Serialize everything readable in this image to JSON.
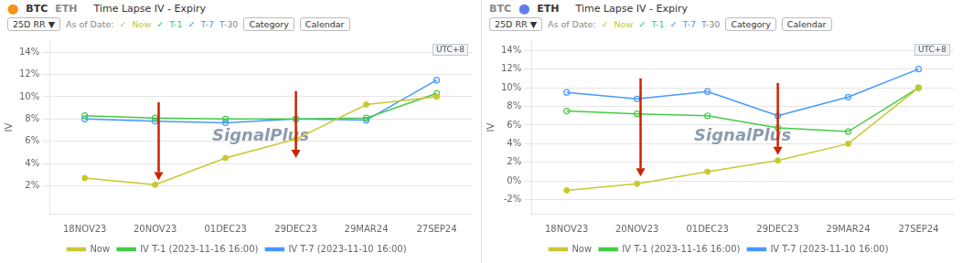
{
  "chart_data": [
    {
      "type": "line",
      "title": "Time Lapse IV - Expiry",
      "ylabel": "IV",
      "categories": [
        "18NOV23",
        "20NOV23",
        "01DEC23",
        "29DEC23",
        "29MAR24",
        "27SEP24"
      ],
      "series": [
        {
          "name": "Now",
          "color": "#c8c830",
          "marker": "circle",
          "values": [
            2.7,
            2.1,
            4.5,
            6.2,
            9.3,
            10.0
          ]
        },
        {
          "name": "IV T-1 (2023-11-16 16:00)",
          "color": "#44cc44",
          "marker": "hollow",
          "values": [
            8.3,
            8.1,
            8.0,
            8.0,
            8.1,
            10.3
          ]
        },
        {
          "name": "IV T-7 (2023-11-10 16:00)",
          "color": "#4499ff",
          "marker": "hollow",
          "values": [
            8.0,
            7.8,
            7.65,
            8.0,
            7.9,
            11.5
          ]
        }
      ],
      "ylim": [
        -0.5,
        15
      ],
      "yticks": [
        {
          "value": 2,
          "label": "2%"
        },
        {
          "value": 4,
          "label": "4%"
        },
        {
          "value": 6,
          "label": "6%"
        },
        {
          "value": 8,
          "label": "8%"
        },
        {
          "value": 10,
          "label": "10%"
        },
        {
          "value": 12,
          "label": "12%"
        },
        {
          "value": 14,
          "label": "14%"
        }
      ],
      "grid": true,
      "legend": "bottom",
      "annotations": [
        {
          "type": "coin",
          "text": "⬤",
          "color": "#f7931a"
        },
        {
          "type": "coin",
          "text": "BTC"
        },
        {
          "type": "coin",
          "text": "ETH",
          "color": "#888888"
        },
        {
          "type": "button",
          "text": "25D RR ▼"
        },
        {
          "type": "toolbar",
          "text": "As of Date:",
          "color": "#888888"
        },
        {
          "type": "toolbar",
          "text": "✓",
          "color": "#c8c830"
        },
        {
          "type": "toolbar",
          "text": "Now",
          "color": "#c8c830"
        },
        {
          "type": "toolbar",
          "text": "✓",
          "color": "#44cc44"
        },
        {
          "type": "toolbar",
          "text": "T-1",
          "color": "#44cc44"
        },
        {
          "type": "toolbar",
          "text": "✓",
          "color": "#4499ff"
        },
        {
          "type": "toolbar",
          "text": "T-7",
          "color": "#4499ff"
        },
        {
          "type": "toolbar",
          "text": "T-30",
          "color": "#888888"
        },
        {
          "type": "button",
          "text": "Category"
        },
        {
          "type": "button",
          "text": "Calendar"
        },
        {
          "type": "watermark",
          "text": "SignalPlus",
          "color": "#1a3a5c"
        },
        {
          "type": "badge",
          "text": "UTC+8"
        },
        {
          "type": "arrow",
          "x": 1.05,
          "y_start": 9.5,
          "y_end": 2.5,
          "color": "#cc2200"
        },
        {
          "type": "arrow",
          "x": 3.0,
          "y_start": 10.5,
          "y_end": 4.5,
          "color": "#cc2200"
        }
      ]
    },
    {
      "type": "line",
      "title": "Time Lapse IV - Expiry",
      "ylabel": "IV",
      "categories": [
        "18NOV23",
        "20NOV23",
        "01DEC23",
        "29DEC23",
        "29MAR24",
        "27SEP24"
      ],
      "series": [
        {
          "name": "Now",
          "color": "#c8c830",
          "marker": "circle",
          "values": [
            -1.0,
            -0.3,
            1.0,
            2.2,
            4.0,
            10.0
          ]
        },
        {
          "name": "IV T-1 (2023-11-16 16:00)",
          "color": "#44cc44",
          "marker": "hollow",
          "values": [
            7.5,
            7.2,
            7.0,
            5.7,
            5.3,
            10.0
          ]
        },
        {
          "name": "IV T-7 (2023-11-10 16:00)",
          "color": "#4499ff",
          "marker": "hollow",
          "values": [
            9.5,
            8.8,
            9.6,
            7.0,
            9.0,
            12.0
          ]
        }
      ],
      "ylim": [
        -3.5,
        15
      ],
      "yticks": [
        {
          "value": -2,
          "label": "-2%"
        },
        {
          "value": 0,
          "label": "0%"
        },
        {
          "value": 2,
          "label": "2%"
        },
        {
          "value": 4,
          "label": "4%"
        },
        {
          "value": 6,
          "label": "6%"
        },
        {
          "value": 8,
          "label": "8%"
        },
        {
          "value": 10,
          "label": "10%"
        },
        {
          "value": 12,
          "label": "12%"
        },
        {
          "value": 14,
          "label": "14%"
        }
      ],
      "grid": true,
      "legend": "bottom",
      "annotations": [
        {
          "type": "coin",
          "text": "BTC",
          "color": "#888888"
        },
        {
          "type": "coin",
          "text": "⬤",
          "color": "#627eea"
        },
        {
          "type": "coin",
          "text": "ETH"
        },
        {
          "type": "button",
          "text": "25D RR ▼"
        },
        {
          "type": "toolbar",
          "text": "As of Date:",
          "color": "#888888"
        },
        {
          "type": "toolbar",
          "text": "✓",
          "color": "#c8c830"
        },
        {
          "type": "toolbar",
          "text": "Now",
          "color": "#c8c830"
        },
        {
          "type": "toolbar",
          "text": "✓",
          "color": "#44cc44"
        },
        {
          "type": "toolbar",
          "text": "T-1",
          "color": "#44cc44"
        },
        {
          "type": "toolbar",
          "text": "✓",
          "color": "#4499ff"
        },
        {
          "type": "toolbar",
          "text": "T-7",
          "color": "#4499ff"
        },
        {
          "type": "toolbar",
          "text": "T-30",
          "color": "#888888"
        },
        {
          "type": "button",
          "text": "Category"
        },
        {
          "type": "button",
          "text": "Calendar"
        },
        {
          "type": "watermark",
          "text": "SignalPlus",
          "color": "#1a3a5c"
        },
        {
          "type": "badge",
          "text": "UTC+8"
        },
        {
          "type": "arrow",
          "x": 1.05,
          "y_start": 11.0,
          "y_end": 0.5,
          "color": "#cc2200"
        },
        {
          "type": "arrow",
          "x": 3.0,
          "y_start": 10.5,
          "y_end": 2.8,
          "color": "#cc2200"
        }
      ]
    }
  ]
}
